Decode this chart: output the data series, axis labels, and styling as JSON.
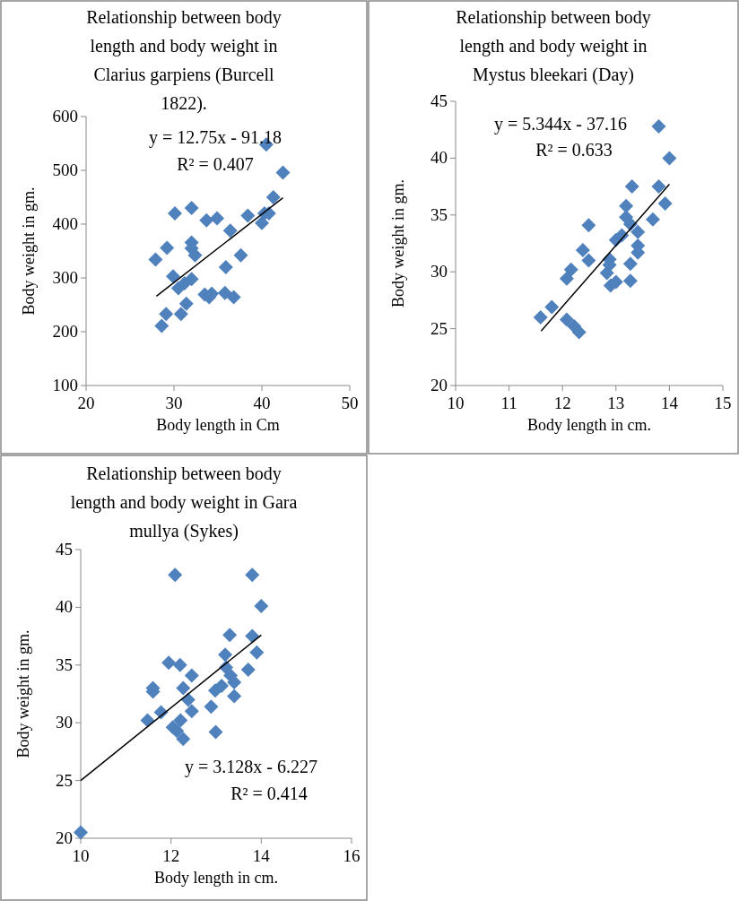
{
  "chart_data": [
    {
      "type": "scatter",
      "title": "Relationship between body length and body weight in Clarius garpiens (Burcell 1822).",
      "xlabel": "Body length in Cm",
      "ylabel": "Body weight in gm.",
      "xlim": [
        20,
        50
      ],
      "xticks": [
        20,
        30,
        40,
        50
      ],
      "ylim": [
        100,
        600
      ],
      "yticks": [
        100,
        200,
        300,
        400,
        500,
        600
      ],
      "marker": "diamond",
      "annotations": [
        "y = 12.75x - 91.18",
        "R² = 0.407"
      ],
      "series": [
        {
          "color": "#4f81bd",
          "x": [
            27.9,
            29.2,
            28.6,
            29.1,
            30.1,
            29.9,
            30.5,
            30.8,
            31.4,
            32.0,
            32.0,
            32.0,
            32.4,
            32.0,
            31.2,
            33.5,
            34.0,
            33.7,
            34.9,
            34.3,
            35.8,
            35.9,
            36.4,
            36.8,
            37.6,
            38.4,
            40.0,
            40.3,
            40.8,
            40.5,
            41.3,
            42.4
          ],
          "values": [
            334,
            356,
            211,
            233,
            420,
            303,
            281,
            233,
            252,
            430,
            366,
            355,
            342,
            298,
            290,
            269,
            264,
            407,
            411,
            271,
            272,
            320,
            388,
            264,
            342,
            416,
            402,
            420,
            420,
            548,
            450,
            496
          ]
        },
        {
          "type": "line",
          "color": "#000000",
          "marker": "none",
          "x": [
            28,
            42.4
          ],
          "values": [
            266,
            449
          ]
        }
      ]
    },
    {
      "type": "scatter",
      "title": "Relationship between body length and body weight in Mystus bleekari (Day)",
      "xlabel": "Body length in cm.",
      "ylabel": "Body weight in gm.",
      "xlim": [
        10,
        15
      ],
      "xticks": [
        10,
        11,
        12,
        13,
        14,
        15
      ],
      "ylim": [
        20,
        45
      ],
      "yticks": [
        20,
        25,
        30,
        35,
        40,
        45
      ],
      "marker": "diamond",
      "annotations": [
        "y = 5.344x - 37.16",
        "R² = 0.633"
      ],
      "series": [
        {
          "color": "#4f81bd",
          "x": [
            11.59,
            11.8,
            12.08,
            12.16,
            12.08,
            12.22,
            12.31,
            12.38,
            12.49,
            12.49,
            12.83,
            12.88,
            12.88,
            12.9,
            13.0,
            13.0,
            13.11,
            13.19,
            13.19,
            13.27,
            13.27,
            13.27,
            13.3,
            13.41,
            13.41,
            13.41,
            13.69,
            13.8,
            13.8,
            13.92,
            14.0
          ],
          "values": [
            26.0,
            26.9,
            29.4,
            30.2,
            25.8,
            25.2,
            24.7,
            31.9,
            31.0,
            34.1,
            29.9,
            31.1,
            30.6,
            28.8,
            29.1,
            32.8,
            33.2,
            35.8,
            34.8,
            34.2,
            29.2,
            30.7,
            37.5,
            33.5,
            32.3,
            31.7,
            34.6,
            37.5,
            42.8,
            36.0,
            40.0
          ]
        },
        {
          "type": "line",
          "color": "#000000",
          "marker": "none",
          "x": [
            11.6,
            14.0
          ],
          "values": [
            24.8,
            37.7
          ]
        }
      ]
    },
    {
      "type": "scatter",
      "title": "Relationship between body length and body weight in Gara mullya (Sykes)",
      "xlabel": "Body length in cm.",
      "ylabel": "Body weight in gm.",
      "xlim": [
        10,
        16
      ],
      "xticks": [
        10,
        12,
        14,
        16
      ],
      "ylim": [
        20,
        45
      ],
      "yticks": [
        20,
        25,
        30,
        35,
        40,
        45
      ],
      "marker": "diamond",
      "annotations": [
        "y = 3.128x - 6.227",
        "R² = 0.414"
      ],
      "series": [
        {
          "color": "#4f81bd",
          "x": [
            10.0,
            11.48,
            11.6,
            11.6,
            11.78,
            11.95,
            12.09,
            12.2,
            12.04,
            12.13,
            12.21,
            12.27,
            12.27,
            12.38,
            12.46,
            12.46,
            12.89,
            12.98,
            12.99,
            13.12,
            13.2,
            13.22,
            13.3,
            13.32,
            13.4,
            13.4,
            13.71,
            13.8,
            13.8,
            13.9,
            14.0
          ],
          "values": [
            20.5,
            30.2,
            33.0,
            32.7,
            30.9,
            35.2,
            42.8,
            35.0,
            29.6,
            29.3,
            30.2,
            33.0,
            28.6,
            32.0,
            31.0,
            34.1,
            31.4,
            32.8,
            29.2,
            33.2,
            35.9,
            34.8,
            37.6,
            34.1,
            33.5,
            32.3,
            34.6,
            42.8,
            37.5,
            36.1,
            40.1
          ]
        },
        {
          "type": "line",
          "color": "#000000",
          "marker": "none",
          "x": [
            10,
            14
          ],
          "values": [
            25.0,
            37.6
          ]
        }
      ]
    }
  ]
}
